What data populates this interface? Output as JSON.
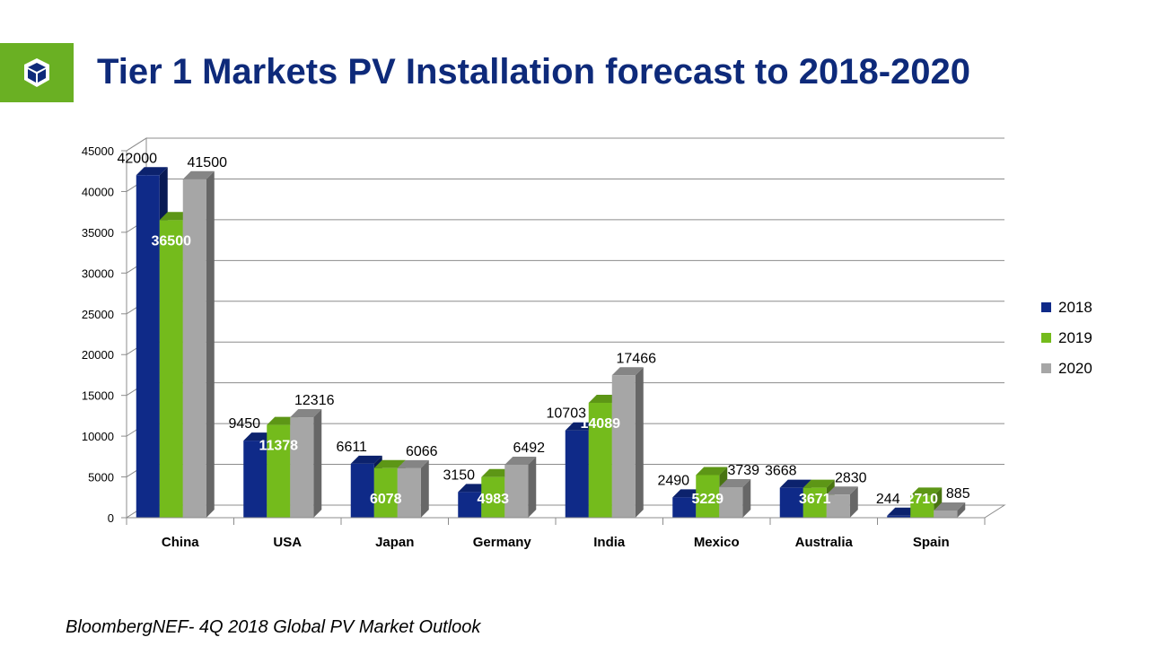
{
  "slide": {
    "title": "Tier 1 Markets PV Installation forecast to 2018-2020",
    "source": "BloombergNEF- 4Q 2018 Global PV Market Outlook"
  },
  "colors": {
    "accent_green": "#6ab023",
    "title_blue": "#0e2a7a"
  },
  "icons": {
    "logo": "cube-icon"
  },
  "chart_data": {
    "type": "bar",
    "style": "3d-clustered-column",
    "categories": [
      "China",
      "USA",
      "Japan",
      "Germany",
      "India",
      "Mexico",
      "Australia",
      "Spain"
    ],
    "series": [
      {
        "name": "2018",
        "color": "#0f2a88",
        "values": [
          42000,
          9450,
          6611,
          3150,
          10703,
          2490,
          3668,
          244
        ]
      },
      {
        "name": "2019",
        "color": "#74bb1c",
        "values": [
          36500,
          11378,
          6078,
          4983,
          14089,
          5229,
          3671,
          2710
        ]
      },
      {
        "name": "2020",
        "color": "#a6a6a6",
        "values": [
          41500,
          12316,
          6066,
          6492,
          17466,
          3739,
          2830,
          885
        ]
      }
    ],
    "ylim": [
      0,
      45000
    ],
    "yticks": [
      0,
      5000,
      10000,
      15000,
      20000,
      25000,
      30000,
      35000,
      40000,
      45000
    ],
    "grid": true,
    "legend": "right",
    "title": "",
    "xlabel": "",
    "ylabel": ""
  }
}
